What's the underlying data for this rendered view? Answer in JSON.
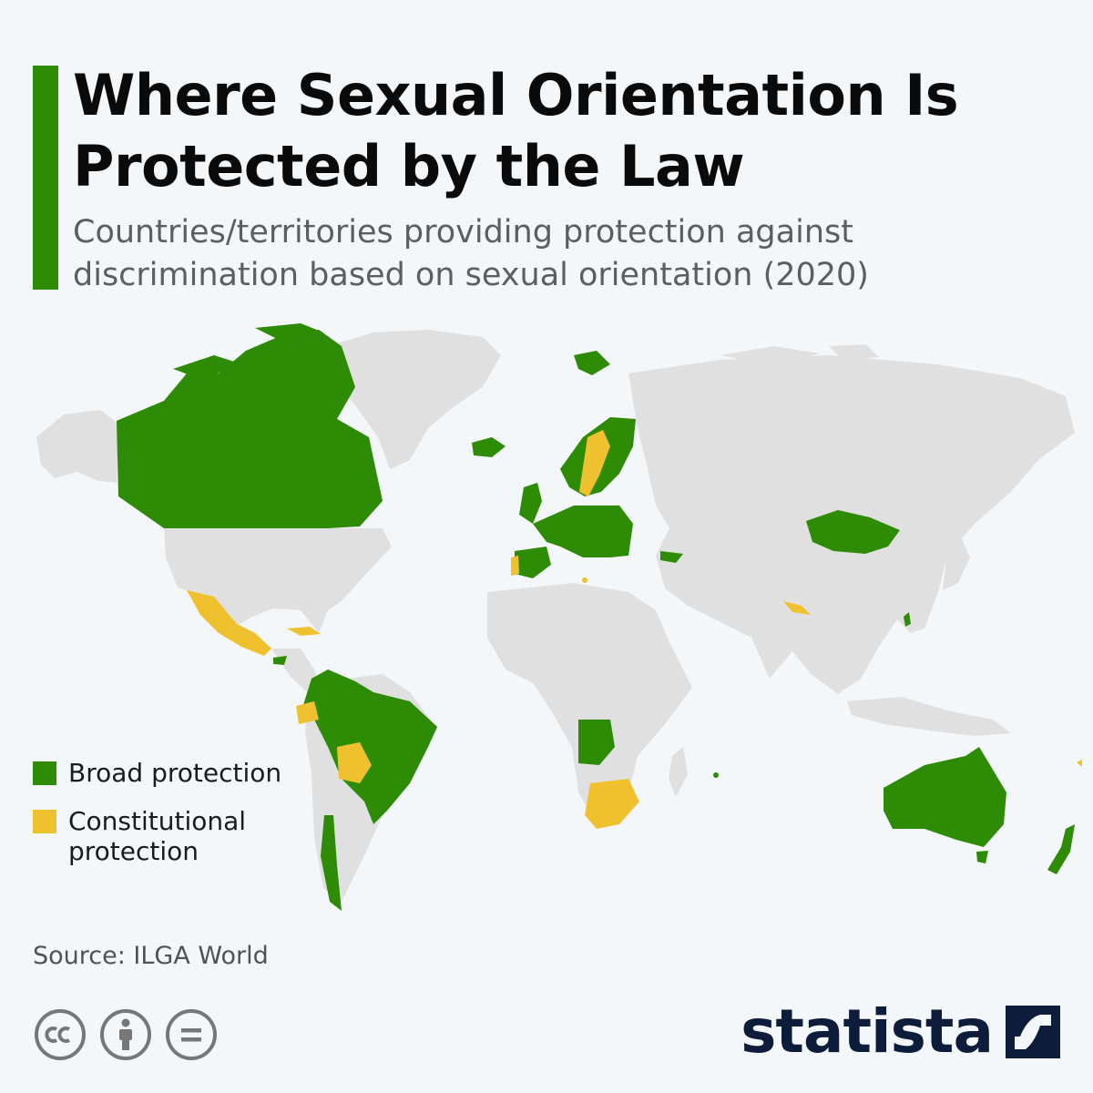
{
  "header": {
    "title": "Where Sexual Orientation Is Protected by the Law",
    "subtitle": "Countries/territories providing protection against discrimination based on sexual orientation (2020)"
  },
  "legend": {
    "items": [
      {
        "label": "Broad protection",
        "color": "#2e8b06"
      },
      {
        "label": "Constitutional protection",
        "color": "#efc12f"
      }
    ]
  },
  "colors": {
    "accent": "#2e8b06",
    "broad": "#2e8b06",
    "constitutional": "#efc12f",
    "land": "#e0e0e0",
    "background": "#f4f7fa",
    "brand": "#0d1c3b"
  },
  "source": {
    "text": "Source: ILGA World"
  },
  "footer": {
    "license_icons": [
      "cc-icon",
      "attribution-icon",
      "no-derivatives-icon"
    ],
    "brand": "statista",
    "brand_icon": "statista-logo-icon"
  }
}
